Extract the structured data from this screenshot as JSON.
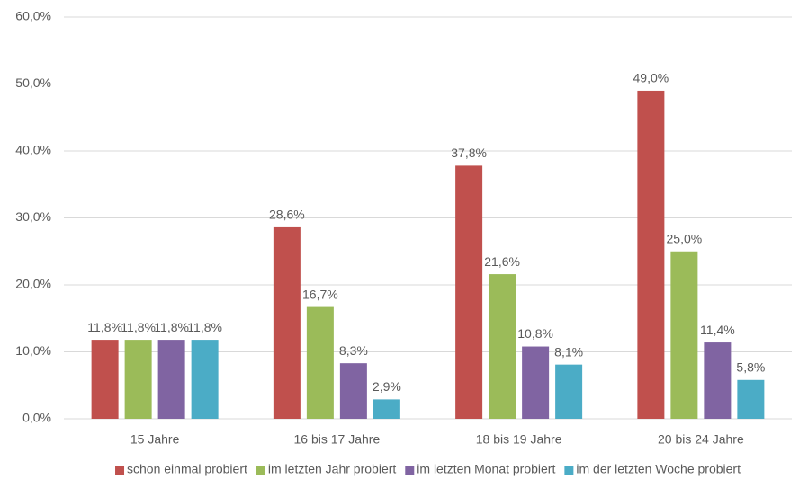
{
  "chart_data": {
    "type": "bar",
    "categories": [
      "15 Jahre",
      "16 bis 17 Jahre",
      "18 bis 19 Jahre",
      "20 bis 24 Jahre"
    ],
    "series": [
      {
        "name": "schon einmal probiert",
        "color": "#c0504d",
        "values": [
          11.8,
          28.6,
          37.8,
          49.0
        ],
        "value_labels": [
          "11,8%",
          "28,6%",
          "37,8%",
          "49,0%"
        ]
      },
      {
        "name": "im letzten Jahr probiert",
        "color": "#9bbb59",
        "values": [
          11.8,
          16.7,
          21.6,
          25.0
        ],
        "value_labels": [
          "11,8%",
          "16,7%",
          "21,6%",
          "25,0%"
        ]
      },
      {
        "name": "im letzten Monat probiert",
        "color": "#8064a2",
        "values": [
          11.8,
          8.3,
          10.8,
          11.4
        ],
        "value_labels": [
          "11,8%",
          "8,3%",
          "10,8%",
          "11,4%"
        ]
      },
      {
        "name": "im der letzten Woche probiert",
        "color": "#4bacc6",
        "values": [
          11.8,
          2.9,
          8.1,
          5.8
        ],
        "value_labels": [
          "11,8%",
          "2,9%",
          "8,1%",
          "5,8%"
        ]
      }
    ],
    "ylim": [
      0,
      60
    ],
    "yticks": [
      {
        "value": 0,
        "label": "0,0%"
      },
      {
        "value": 10,
        "label": "10,0%"
      },
      {
        "value": 20,
        "label": "20,0%"
      },
      {
        "value": 30,
        "label": "30,0%"
      },
      {
        "value": 40,
        "label": "40,0%"
      },
      {
        "value": 50,
        "label": "50,0%"
      },
      {
        "value": 60,
        "label": "60,0%"
      }
    ],
    "grid": true,
    "legend": "bottom"
  }
}
